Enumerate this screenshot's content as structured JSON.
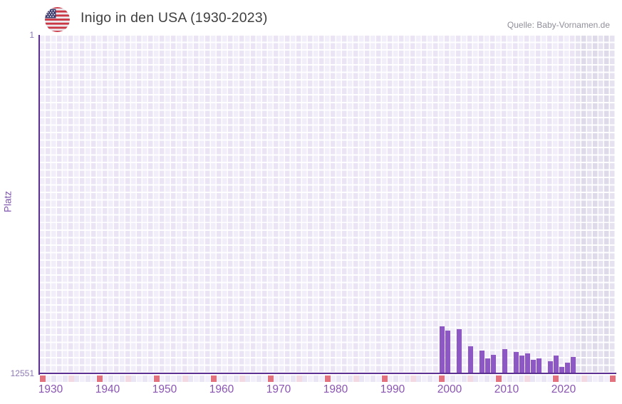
{
  "header": {
    "title": "Inigo in den USA (1930-2023)",
    "source": "Quelle: Baby-Vornamen.de",
    "flag_icon": "us-flag-icon"
  },
  "chart_data": {
    "type": "bar",
    "title": "Inigo in den USA (1930-2023)",
    "xlabel": "",
    "ylabel": "Platz",
    "y_axis": {
      "top_label": "1",
      "bottom_label": "12551",
      "min": 1,
      "max": 12551,
      "inverted": true
    },
    "x_axis": {
      "data_start": 1930,
      "data_end": 2023,
      "axis_end": 2030,
      "tick_labels": [
        "1930",
        "1940",
        "1950",
        "1960",
        "1970",
        "1980",
        "1990",
        "2000",
        "2010",
        "2020"
      ]
    },
    "series": [
      {
        "name": "Platz",
        "points": [
          {
            "year": 2000,
            "rank": 10800
          },
          {
            "year": 2001,
            "rank": 10950
          },
          {
            "year": 2003,
            "rank": 10900
          },
          {
            "year": 2005,
            "rank": 11550
          },
          {
            "year": 2007,
            "rank": 11700
          },
          {
            "year": 2008,
            "rank": 12000
          },
          {
            "year": 2009,
            "rank": 11850
          },
          {
            "year": 2011,
            "rank": 11650
          },
          {
            "year": 2013,
            "rank": 11750
          },
          {
            "year": 2014,
            "rank": 11900
          },
          {
            "year": 2015,
            "rank": 11800
          },
          {
            "year": 2016,
            "rank": 12050
          },
          {
            "year": 2017,
            "rank": 12000
          },
          {
            "year": 2019,
            "rank": 12100
          },
          {
            "year": 2020,
            "rank": 11900
          },
          {
            "year": 2021,
            "rank": 12300
          },
          {
            "year": 2022,
            "rank": 12150
          },
          {
            "year": 2023,
            "rank": 11950
          }
        ]
      }
    ],
    "unranked_gap_years": [
      2002,
      2004,
      2006,
      2010,
      2012,
      2018
    ],
    "future_band": {
      "start": 2024,
      "end": 2030
    },
    "tick_band": {
      "decade_years_color": "#e2737e",
      "half_decade_years_color": "#f3d9e1",
      "even_year_color": "#eae5f4",
      "odd_year_color": "#f3effa"
    },
    "grid": true,
    "legend": false,
    "colors": {
      "bar": "#8d58c4",
      "axis_line": "#5b3092",
      "plot_cell": "#eee9f8",
      "future_cell": "#e2deec",
      "x_label": "#8a55b2",
      "y_label": "#8d79b5",
      "title": "#3f3f3f",
      "source": "#8f8f9a"
    }
  }
}
